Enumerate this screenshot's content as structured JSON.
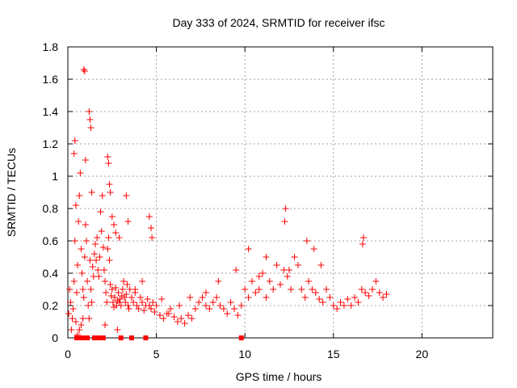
{
  "chart_data": {
    "type": "scatter",
    "title": "Day 333 of 2024, SRMTID for receiver ifsc",
    "xlabel": "GPS time / hours",
    "ylabel": "SRMTID / TECUs",
    "xlim": [
      0,
      24
    ],
    "ylim": [
      0,
      1.8
    ],
    "xticks": [
      0,
      5,
      10,
      15,
      20
    ],
    "yticks": [
      0,
      0.2,
      0.4,
      0.6,
      0.8,
      1,
      1.2,
      1.4,
      1.6,
      1.8
    ],
    "xtick_labels": [
      "0",
      "5",
      "10",
      "15",
      "20"
    ],
    "ytick_labels": [
      "0",
      "0.2",
      "0.4",
      "0.6",
      "0.8",
      "1",
      "1.2",
      "1.4",
      "1.6",
      "1.8"
    ],
    "grid": true,
    "marker_color": "#ff0000",
    "series": [
      {
        "name": "SRMTID",
        "x": [
          0.05,
          0.1,
          0.15,
          0.2,
          0.25,
          0.3,
          0.35,
          0.4,
          0.45,
          0.5,
          0.55,
          0.6,
          0.65,
          0.7,
          0.75,
          0.8,
          0.85,
          0.9,
          0.95,
          1.0,
          1.05,
          1.1,
          1.15,
          1.2,
          1.25,
          1.3,
          1.35,
          1.4,
          1.45,
          1.5,
          1.55,
          1.6,
          1.65,
          1.7,
          1.75,
          1.8,
          1.85,
          1.9,
          1.95,
          2.0,
          2.05,
          2.1,
          2.15,
          2.2,
          2.25,
          2.3,
          2.35,
          2.4,
          2.45,
          2.5,
          2.55,
          2.6,
          2.65,
          2.7,
          2.75,
          2.8,
          2.85,
          2.9,
          2.95,
          3.0,
          3.05,
          3.1,
          3.15,
          3.2,
          3.25,
          3.3,
          3.35,
          3.4,
          3.45,
          3.5,
          3.6,
          3.7,
          3.8,
          3.9,
          4.0,
          4.1,
          4.2,
          4.3,
          4.4,
          4.5,
          4.6,
          4.7,
          4.8,
          4.9,
          5.0,
          5.2,
          5.4,
          5.6,
          5.8,
          6.0,
          6.2,
          6.4,
          6.6,
          6.8,
          7.0,
          7.2,
          7.4,
          7.6,
          7.8,
          8.0,
          8.2,
          8.4,
          8.6,
          8.8,
          9.0,
          9.2,
          9.4,
          9.6,
          9.8,
          10.0,
          10.2,
          10.4,
          10.6,
          10.8,
          11.0,
          11.2,
          11.4,
          11.6,
          11.8,
          12.0,
          12.2,
          12.4,
          12.6,
          12.8,
          13.0,
          13.2,
          13.4,
          13.6,
          13.8,
          14.0,
          14.2,
          14.4,
          14.6,
          14.8,
          15.0,
          15.2,
          15.4,
          15.6,
          15.8,
          16.0,
          16.2,
          16.4,
          16.6,
          16.8,
          17.0,
          17.2,
          17.4,
          17.6,
          17.8,
          18.0,
          0.35,
          0.4,
          0.45,
          0.55,
          0.65,
          0.75,
          0.85,
          0.9,
          0.95,
          1.0,
          1.2,
          1.25,
          1.3,
          1.35,
          2.25,
          2.3,
          2.35,
          2.4,
          2.5,
          2.6,
          2.7,
          2.9,
          3.3,
          3.4,
          4.6,
          4.7,
          4.75,
          12.3,
          12.25,
          13.5,
          13.9,
          16.7,
          16.65,
          14.3,
          12.5,
          11.2,
          10.8,
          10.2,
          9.5,
          8.5,
          7.8,
          6.9,
          6.3,
          5.7,
          5.3,
          4.2,
          3.8,
          2.1,
          2.8,
          9.8,
          0.5,
          0.6,
          0.7,
          0.8,
          1.0,
          1.1,
          1.5,
          1.6,
          1.7,
          1.8,
          1.9,
          2.0,
          3.0,
          3.6,
          4.4
        ],
        "y": [
          0.15,
          0.3,
          0.22,
          0.05,
          0.12,
          0.18,
          0.35,
          0.6,
          0.1,
          0.28,
          0.45,
          0.72,
          0.88,
          1.02,
          0.55,
          0.4,
          0.3,
          0.25,
          0.5,
          0.7,
          0.6,
          0.35,
          0.2,
          0.12,
          0.48,
          0.3,
          0.22,
          0.44,
          0.38,
          0.52,
          0.58,
          0.48,
          0.62,
          0.42,
          0.38,
          0.5,
          0.78,
          0.66,
          0.88,
          0.56,
          0.42,
          0.35,
          0.28,
          0.22,
          0.55,
          0.62,
          0.48,
          0.33,
          0.26,
          0.3,
          0.22,
          0.19,
          0.25,
          0.31,
          0.2,
          0.23,
          0.28,
          0.22,
          0.24,
          0.2,
          0.26,
          0.3,
          0.35,
          0.25,
          0.22,
          0.27,
          0.33,
          0.2,
          0.18,
          0.3,
          0.25,
          0.22,
          0.3,
          0.2,
          0.18,
          0.25,
          0.22,
          0.17,
          0.2,
          0.24,
          0.2,
          0.18,
          0.22,
          0.16,
          0.2,
          0.14,
          0.12,
          0.15,
          0.18,
          0.13,
          0.1,
          0.12,
          0.09,
          0.14,
          0.12,
          0.18,
          0.22,
          0.25,
          0.2,
          0.18,
          0.22,
          0.25,
          0.2,
          0.18,
          0.15,
          0.22,
          0.18,
          0.14,
          0.2,
          0.3,
          0.25,
          0.35,
          0.28,
          0.3,
          0.4,
          0.25,
          0.35,
          0.3,
          0.45,
          0.33,
          0.42,
          0.38,
          0.3,
          0.5,
          0.45,
          0.3,
          0.25,
          0.35,
          0.3,
          0.28,
          0.24,
          0.22,
          0.3,
          0.25,
          0.2,
          0.18,
          0.22,
          0.2,
          0.24,
          0.2,
          0.25,
          0.22,
          0.3,
          0.28,
          0.26,
          0.3,
          0.35,
          0.28,
          0.25,
          0.27,
          1.14,
          1.22,
          0.82,
          0.02,
          0.05,
          0.08,
          0.12,
          1.66,
          1.65,
          1.1,
          1.4,
          1.35,
          1.3,
          0.9,
          1.12,
          1.08,
          0.95,
          0.9,
          0.75,
          0.7,
          0.65,
          0.62,
          0.88,
          0.72,
          0.75,
          0.68,
          0.62,
          0.8,
          0.72,
          0.6,
          0.55,
          0.62,
          0.58,
          0.45,
          0.42,
          0.5,
          0.38,
          0.55,
          0.42,
          0.35,
          0.28,
          0.25,
          0.2,
          0.15,
          0.24,
          0.35,
          0.28,
          0.08,
          0.05,
          0.0,
          0.0,
          0.0,
          0.0,
          0.0,
          0.0,
          0.0,
          0.0,
          0.0,
          0.0,
          0.0,
          0.0,
          0.0,
          0.0,
          0.0,
          0.0
        ]
      }
    ]
  }
}
